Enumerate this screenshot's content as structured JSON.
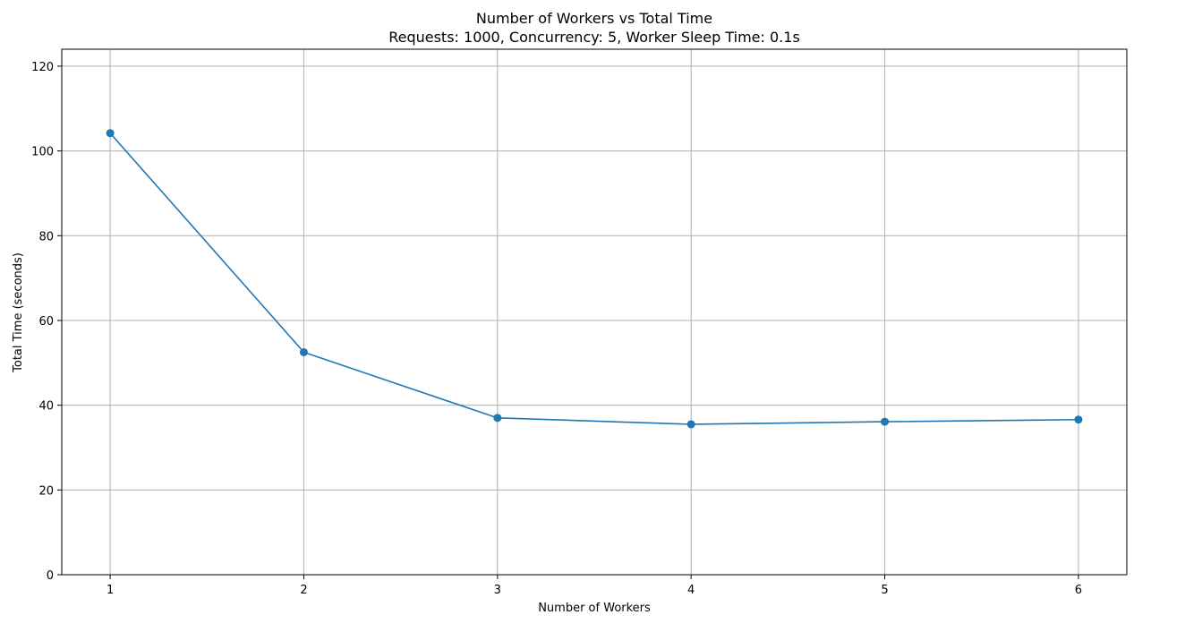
{
  "chart_data": {
    "type": "line",
    "title": "Number of Workers vs Total Time",
    "subtitle": "Requests: 1000, Concurrency: 5, Worker Sleep Time: 0.1s",
    "xlabel": "Number of Workers",
    "ylabel": "Total Time (seconds)",
    "x": [
      1,
      2,
      3,
      4,
      5,
      6
    ],
    "series": [
      {
        "values": [
          104.2,
          52.5,
          37.0,
          35.5,
          36.1,
          36.6
        ],
        "color": "#1f77b4",
        "marker": "circle"
      }
    ],
    "xlim": [
      0.75,
      6.25
    ],
    "ylim": [
      0,
      124
    ],
    "xticks": [
      1,
      2,
      3,
      4,
      5,
      6
    ],
    "yticks": [
      0,
      20,
      40,
      60,
      80,
      100,
      120
    ],
    "grid": true,
    "legend": "none"
  },
  "colors": {
    "line": "#1f77b4",
    "grid": "#b0b0b0",
    "axes": "#000000"
  }
}
